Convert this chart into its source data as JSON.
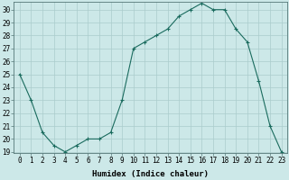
{
  "x": [
    0,
    1,
    2,
    3,
    4,
    5,
    6,
    7,
    8,
    9,
    10,
    11,
    12,
    13,
    14,
    15,
    16,
    17,
    18,
    19,
    20,
    21,
    22,
    23
  ],
  "y": [
    25,
    23,
    20.5,
    19.5,
    19,
    19.5,
    20,
    20,
    20.5,
    23,
    27,
    27.5,
    28,
    28.5,
    29.5,
    30,
    30.5,
    30,
    30,
    28.5,
    27.5,
    24.5,
    21,
    19
  ],
  "line_color": "#1a6b5e",
  "marker": "+",
  "marker_color": "#1a6b5e",
  "bg_color": "#cce8e8",
  "grid_color": "#aacccc",
  "xlabel": "Humidex (Indice chaleur)",
  "ylim_min": 19,
  "ylim_max": 30.6,
  "yticks": [
    19,
    20,
    21,
    22,
    23,
    24,
    25,
    26,
    27,
    28,
    29,
    30
  ],
  "tick_fontsize": 5.5,
  "xlabel_fontsize": 6.5
}
